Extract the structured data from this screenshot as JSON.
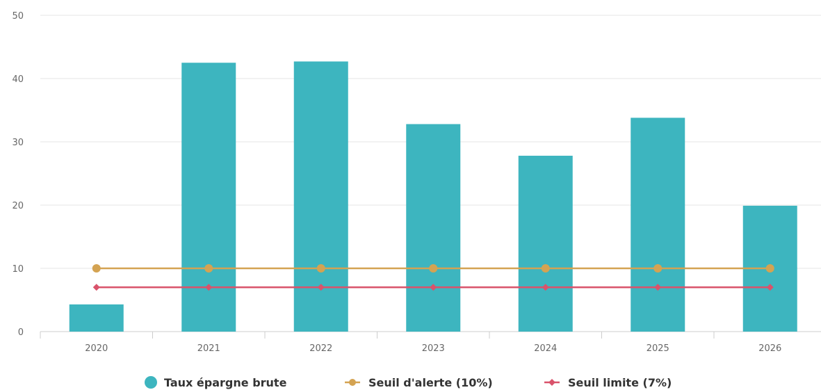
{
  "chart_data": {
    "type": "bar",
    "categories": [
      "2020",
      "2021",
      "2022",
      "2023",
      "2024",
      "2025",
      "2026"
    ],
    "ylim": [
      0,
      50
    ],
    "yticks": [
      0,
      10,
      20,
      30,
      40,
      50
    ],
    "grid": true,
    "legend_position": "bottom",
    "series": [
      {
        "name": "Taux épargne brute",
        "type": "bar",
        "color": "#3db5bf",
        "marker": "circle",
        "values": [
          4.3,
          42.5,
          42.7,
          32.8,
          27.8,
          33.8,
          19.9
        ]
      },
      {
        "name": "Seuil d'alerte (10%)",
        "type": "line",
        "color": "#d4a352",
        "marker": "circle",
        "values": [
          10,
          10,
          10,
          10,
          10,
          10,
          10
        ]
      },
      {
        "name": "Seuil limite (7%)",
        "type": "line",
        "color": "#d9536b",
        "marker": "diamond",
        "values": [
          7,
          7,
          7,
          7,
          7,
          7,
          7
        ]
      }
    ]
  }
}
